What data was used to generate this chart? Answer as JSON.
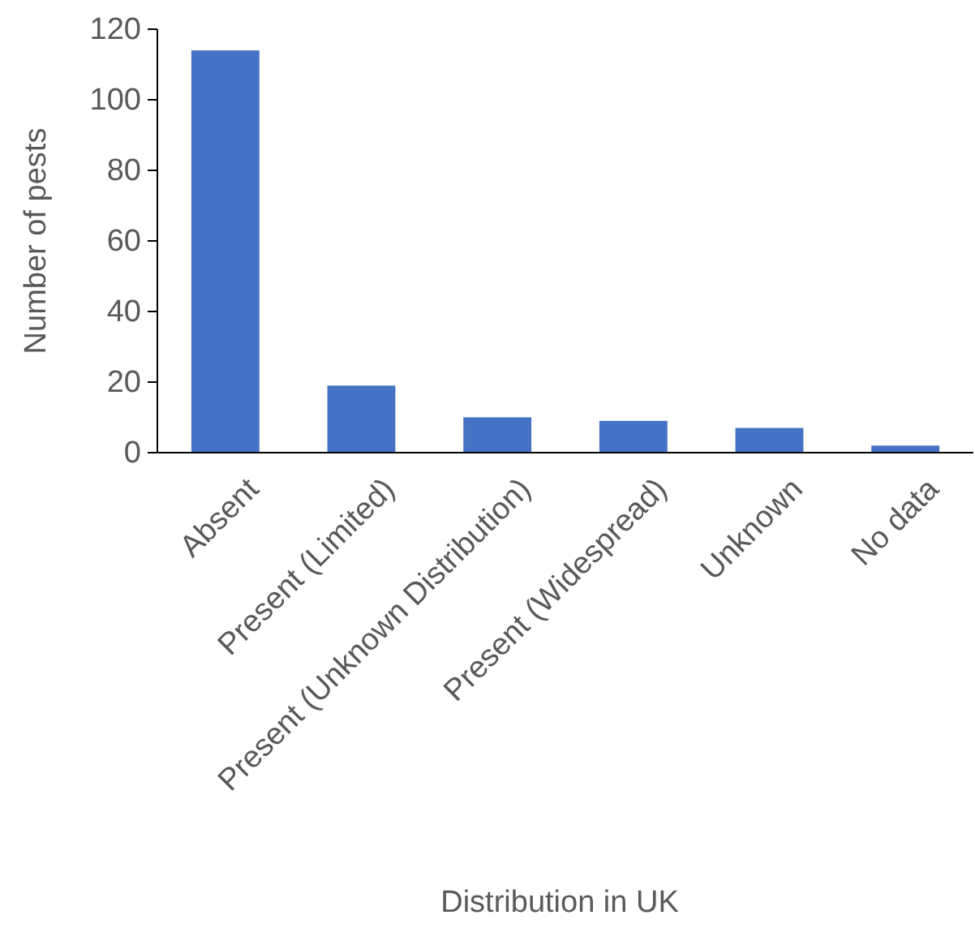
{
  "chart_data": {
    "type": "bar",
    "xlabel": "Distribution in UK",
    "ylabel": "Number of pests",
    "categories": [
      "Absent",
      "Present (Limited)",
      "Present (Unknown Distribution)",
      "Present (Widespread)",
      "Unknown",
      "No data"
    ],
    "values": [
      114,
      19,
      10,
      9,
      7,
      2
    ],
    "color": "#4472c4",
    "ylim": [
      0,
      120
    ],
    "yticks": [
      0,
      20,
      40,
      60,
      80,
      100,
      120
    ],
    "grid": false
  }
}
